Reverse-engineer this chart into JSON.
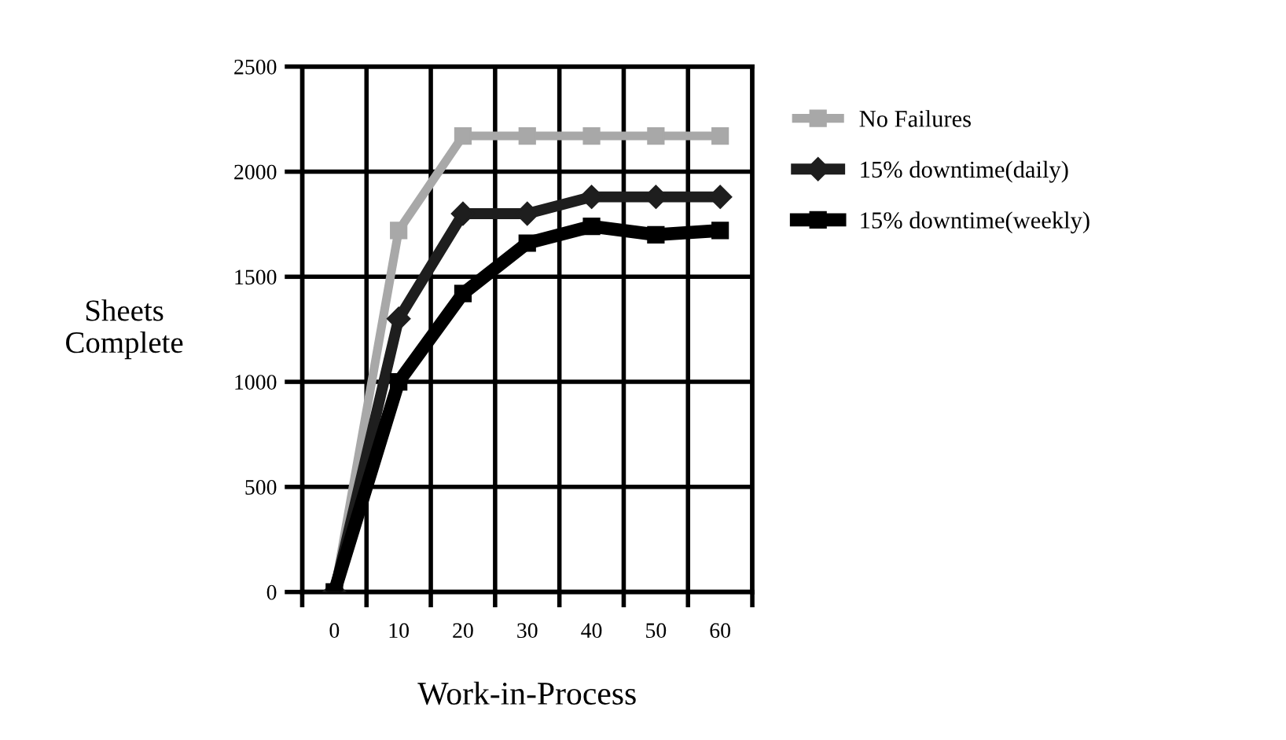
{
  "chart_data": {
    "type": "line",
    "xlabel": "Work-in-Process",
    "ylabel": "Sheets\nComplete",
    "x": [
      0,
      10,
      20,
      30,
      40,
      50,
      60
    ],
    "series": [
      {
        "name": "No Failures",
        "color": "#a8a8a8",
        "marker": "square",
        "values": [
          0,
          1720,
          2170,
          2170,
          2170,
          2170,
          2170
        ]
      },
      {
        "name": "15% downtime(daily)",
        "color": "#1e1e1e",
        "marker": "diamond",
        "values": [
          0,
          1300,
          1800,
          1800,
          1880,
          1880,
          1880
        ]
      },
      {
        "name": "15% downtime(weekly)",
        "color": "#000000",
        "marker": "square",
        "values": [
          0,
          1000,
          1420,
          1660,
          1740,
          1700,
          1720
        ]
      }
    ],
    "xlim": [
      -5,
      65
    ],
    "xticks": [
      0,
      10,
      20,
      30,
      40,
      50,
      60,
      {
        "value": -5,
        "label": null
      },
      {
        "value": 5,
        "label": null
      },
      {
        "value": 15,
        "label": null
      },
      {
        "value": 25,
        "label": null
      },
      {
        "value": 35,
        "label": null
      },
      {
        "value": 45,
        "label": null
      },
      {
        "value": 55,
        "label": null
      },
      {
        "value": 65,
        "label": null
      }
    ],
    "ylim": [
      0,
      2500
    ],
    "yticks": [
      0,
      500,
      1000,
      1500,
      2000,
      2500
    ],
    "grid": true,
    "legend": "right"
  }
}
